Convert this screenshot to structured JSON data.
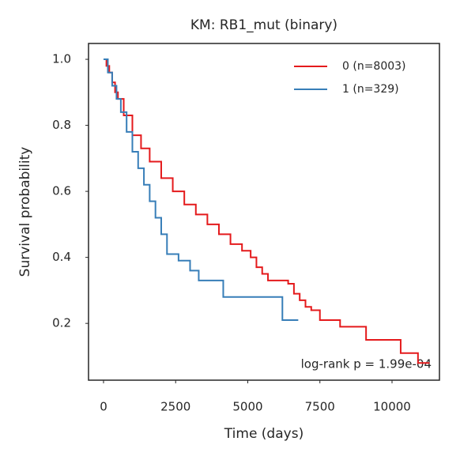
{
  "chart_data": {
    "type": "step-line",
    "title": "KM: RB1_mut (binary)",
    "x_label": "Time (days)",
    "y_label": "Survival probability",
    "annotation": "log-rank p = 1.99e-04",
    "legend": "upper right",
    "xlim": [
      -520,
      11644
    ],
    "ylim": [
      0.028,
      1.048
    ],
    "xticks": [
      0,
      2500,
      5000,
      7500,
      10000
    ],
    "yticks": [
      0.2,
      0.4,
      0.6,
      0.8,
      {
        "value": 1,
        "label": "1.0"
      }
    ],
    "series": [
      {
        "name": "0 (n=8003)",
        "color": "#e41a1c",
        "x": [
          0,
          100,
          200,
          300,
          400,
          500,
          700,
          1000,
          1300,
          1600,
          2000,
          2400,
          2800,
          3200,
          3600,
          4000,
          4400,
          4800,
          5100,
          5300,
          5500,
          5700,
          6400,
          6600,
          6800,
          7000,
          7200,
          7500,
          8200,
          9100,
          10300,
          10900,
          11300
        ],
        "values": [
          1.0,
          0.98,
          0.96,
          0.93,
          0.9,
          0.88,
          0.83,
          0.77,
          0.73,
          0.69,
          0.64,
          0.6,
          0.56,
          0.53,
          0.5,
          0.47,
          0.44,
          0.42,
          0.4,
          0.37,
          0.35,
          0.33,
          0.32,
          0.29,
          0.27,
          0.25,
          0.24,
          0.21,
          0.19,
          0.15,
          0.11,
          0.08,
          0.08
        ]
      },
      {
        "name": "1 (n=329)",
        "color": "#377eb8",
        "x": [
          0,
          150,
          300,
          450,
          600,
          800,
          1000,
          1200,
          1400,
          1600,
          1800,
          2000,
          2200,
          2600,
          3000,
          3300,
          4150,
          6200,
          6750
        ],
        "values": [
          1.0,
          0.96,
          0.92,
          0.88,
          0.84,
          0.78,
          0.72,
          0.67,
          0.62,
          0.57,
          0.52,
          0.47,
          0.41,
          0.39,
          0.36,
          0.33,
          0.28,
          0.21,
          0.21
        ]
      }
    ]
  }
}
